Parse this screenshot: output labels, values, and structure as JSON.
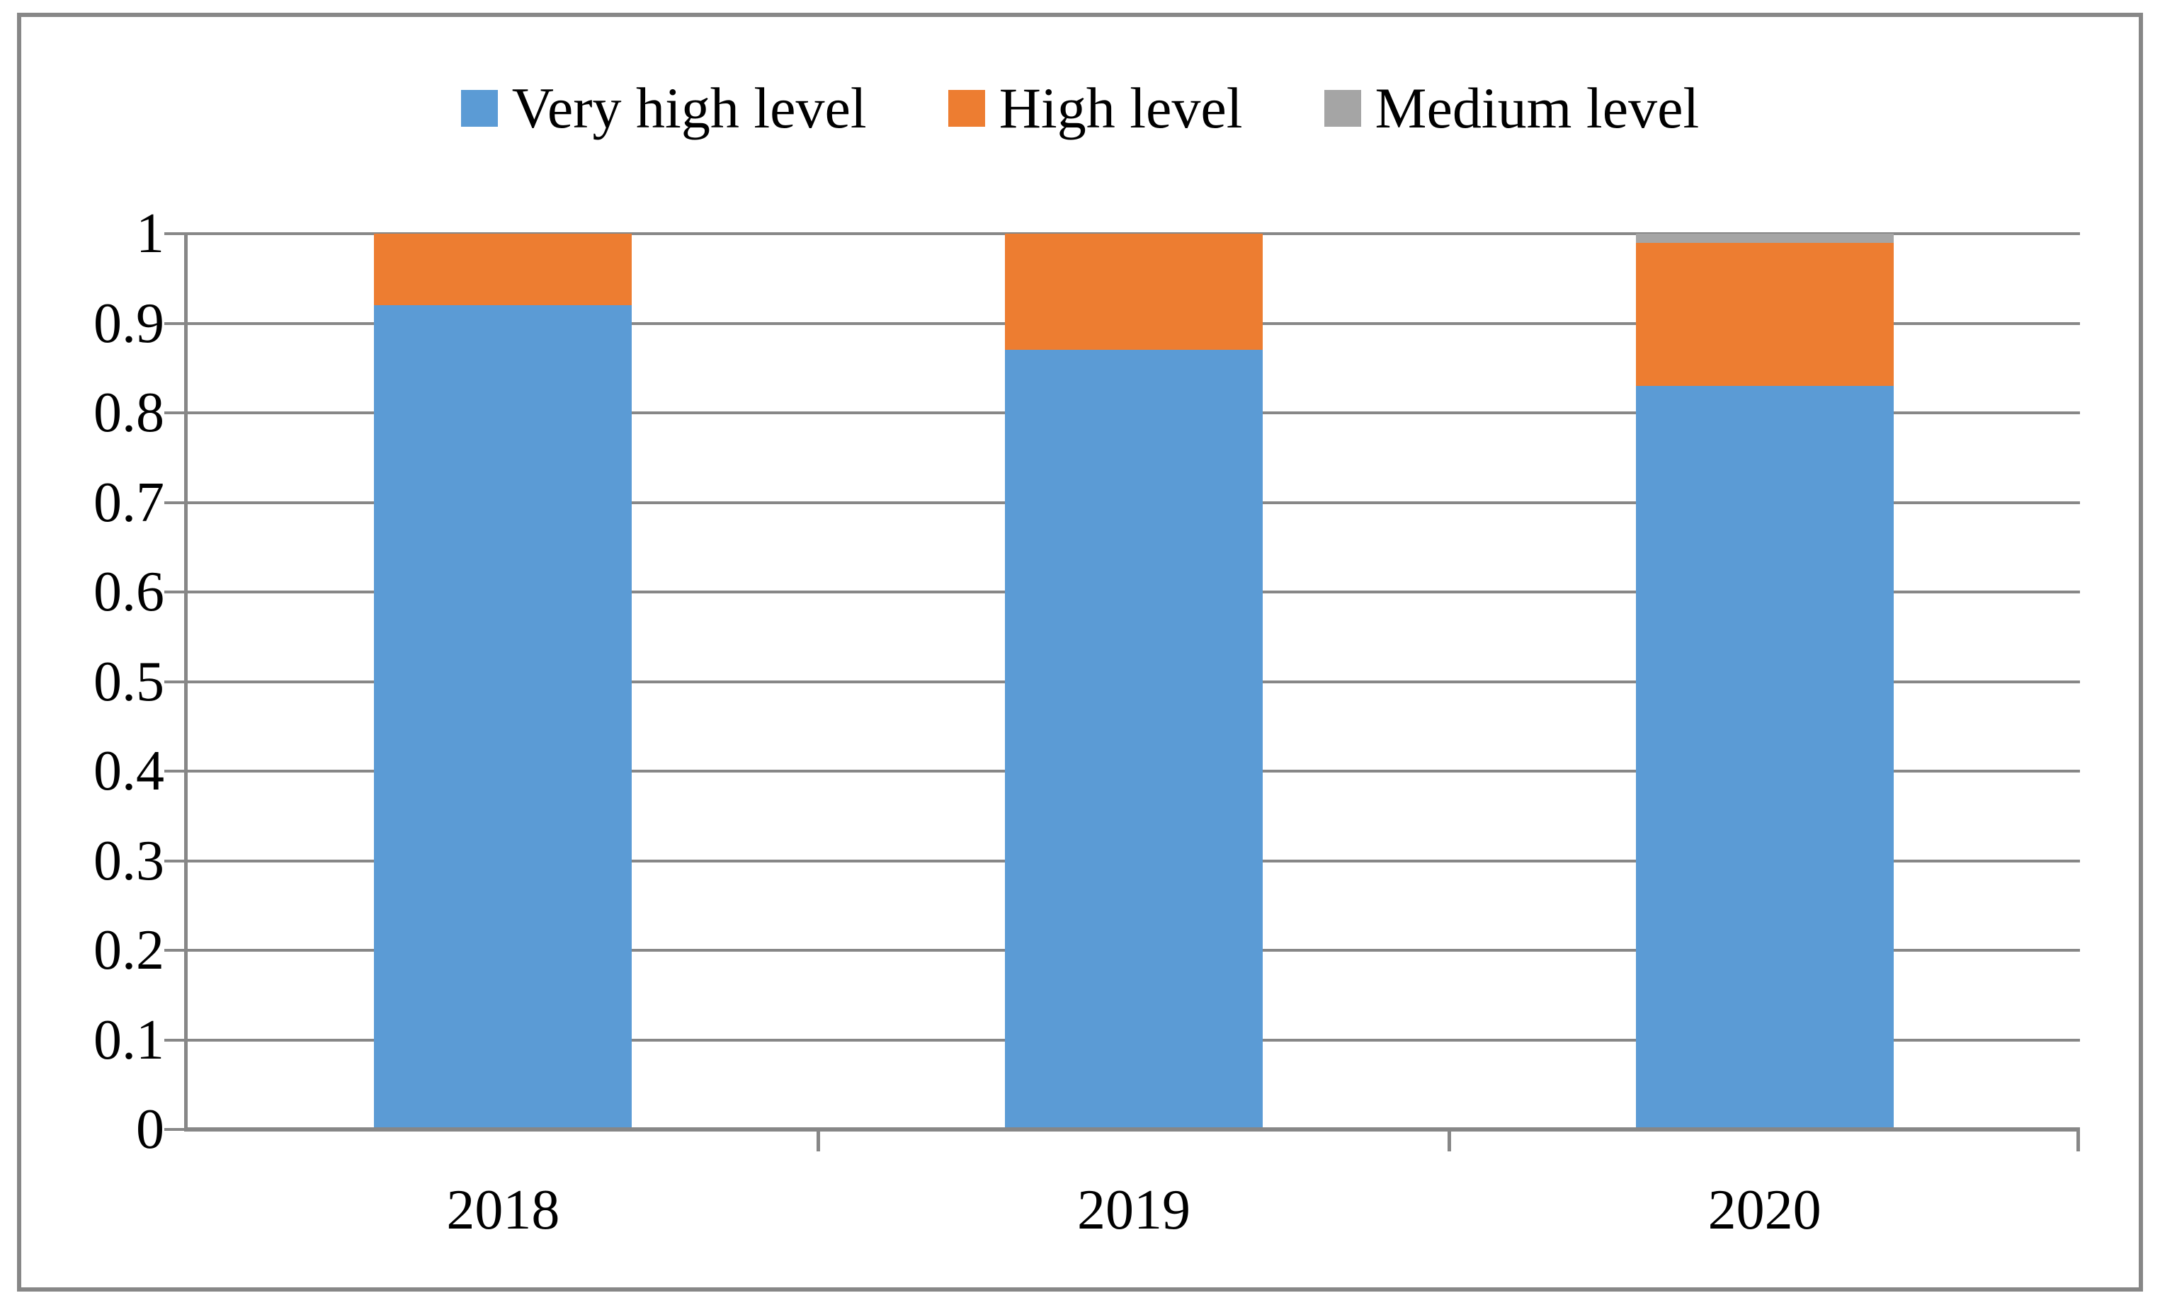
{
  "figure": {
    "background": "#ffffff",
    "border_color": "#878787",
    "axis_line_color": "#878787",
    "gridline_color": "#878787",
    "text_color": "#000000"
  },
  "legend": {
    "position": "top",
    "items": [
      {
        "label": "Very high level",
        "color": "#5B9BD5"
      },
      {
        "label": "High level",
        "color": "#ED7D31"
      },
      {
        "label": "Medium level",
        "color": "#A5A5A5"
      }
    ]
  },
  "chart_data": {
    "type": "bar",
    "stacked": true,
    "orientation": "vertical",
    "title": "",
    "xlabel": "",
    "ylabel": "",
    "categories": [
      "2018",
      "2019",
      "2020"
    ],
    "series": [
      {
        "name": "Very high level",
        "color": "#5B9BD5",
        "values": [
          0.92,
          0.87,
          0.83
        ]
      },
      {
        "name": "High level",
        "color": "#ED7D31",
        "values": [
          0.08,
          0.13,
          0.16
        ]
      },
      {
        "name": "Medium level",
        "color": "#A5A5A5",
        "values": [
          0.0,
          0.0,
          0.01
        ]
      }
    ],
    "ylim": [
      0,
      1
    ],
    "ytick_step": 0.1,
    "yticks": [
      {
        "value": 0.0,
        "label": "0"
      },
      {
        "value": 0.1,
        "label": "0.1"
      },
      {
        "value": 0.2,
        "label": "0.2"
      },
      {
        "value": 0.3,
        "label": "0.3"
      },
      {
        "value": 0.4,
        "label": "0.4"
      },
      {
        "value": 0.5,
        "label": "0.5"
      },
      {
        "value": 0.6,
        "label": "0.6"
      },
      {
        "value": 0.7,
        "label": "0.7"
      },
      {
        "value": 0.8,
        "label": "0.8"
      },
      {
        "value": 0.9,
        "label": "0.9"
      },
      {
        "value": 1.0,
        "label": "1"
      }
    ],
    "grid": "horizontal",
    "legend_position": "top"
  }
}
